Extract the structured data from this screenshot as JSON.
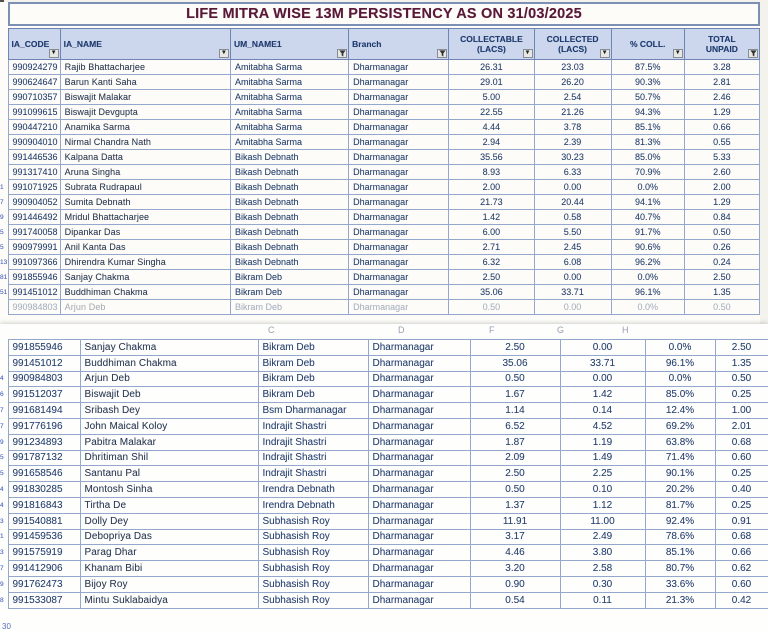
{
  "title": "LIFE MITRA WISE 13M PERSISTENCY AS ON 31/03/2025",
  "colors": {
    "title_text": "#5a1838",
    "header_bg": "#ccd7ed",
    "header_text": "#1e3a6e",
    "grid_border": "#94a8cd",
    "cell_text": "#26406f"
  },
  "columns": [
    {
      "label": "IA_CODE",
      "label2": "",
      "filter": "dropdown",
      "align": "text"
    },
    {
      "label": "IA_NAME",
      "label2": "",
      "filter": "dropdown",
      "align": "text"
    },
    {
      "label": "UM_NAME1",
      "label2": "",
      "filter": "funnel",
      "align": "text"
    },
    {
      "label": "Branch",
      "label2": "",
      "filter": "funnel",
      "align": "text"
    },
    {
      "label": "COLLECTABLE",
      "label2": "(LACS)",
      "filter": "dropdown",
      "align": "num"
    },
    {
      "label": "COLLECTED",
      "label2": "(LACS)",
      "filter": "dropdown",
      "align": "num"
    },
    {
      "label": "% COLL.",
      "label2": "",
      "filter": "dropdown",
      "align": "num"
    },
    {
      "label": "TOTAL",
      "label2": "UNPAID",
      "filter": "funnel",
      "align": "num"
    }
  ],
  "top_table": {
    "gutter": [
      "",
      "",
      "",
      "",
      "",
      "",
      "",
      "",
      "1",
      "7",
      "9",
      "5",
      "5",
      "13",
      "81",
      "51",
      ""
    ],
    "rows": [
      [
        "990924279",
        "Rajib Bhattacharjee",
        "Amitabha Sarma",
        "Dharmanagar",
        "26.31",
        "23.03",
        "87.5%",
        "3.28"
      ],
      [
        "990624647",
        "Barun Kanti Saha",
        "Amitabha Sarma",
        "Dharmanagar",
        "29.01",
        "26.20",
        "90.3%",
        "2.81"
      ],
      [
        "990710357",
        "Biswajit Malakar",
        "Amitabha Sarma",
        "Dharmanagar",
        "5.00",
        "2.54",
        "50.7%",
        "2.46"
      ],
      [
        "991099615",
        "Biswajit Devgupta",
        "Amitabha Sarma",
        "Dharmanagar",
        "22.55",
        "21.26",
        "94.3%",
        "1.29"
      ],
      [
        "990447210",
        "Anamika Sarma",
        "Amitabha Sarma",
        "Dharmanagar",
        "4.44",
        "3.78",
        "85.1%",
        "0.66"
      ],
      [
        "990904010",
        "Nirmal Chandra Nath",
        "Amitabha Sarma",
        "Dharmanagar",
        "2.94",
        "2.39",
        "81.3%",
        "0.55"
      ],
      [
        "991446536",
        "Kalpana Datta",
        "Bikash Debnath",
        "Dharmanagar",
        "35.56",
        "30.23",
        "85.0%",
        "5.33"
      ],
      [
        "991317410",
        "Aruna Singha",
        "Bikash Debnath",
        "Dharmanagar",
        "8.93",
        "6.33",
        "70.9%",
        "2.60"
      ],
      [
        "991071925",
        "Subrata Rudrapaul",
        "Bikash Debnath",
        "Dharmanagar",
        "2.00",
        "0.00",
        "0.0%",
        "2.00"
      ],
      [
        "990904052",
        "Sumita Debnath",
        "Bikash Debnath",
        "Dharmanagar",
        "21.73",
        "20.44",
        "94.1%",
        "1.29"
      ],
      [
        "991446492",
        "Mridul Bhattacharjee",
        "Bikash Debnath",
        "Dharmanagar",
        "1.42",
        "0.58",
        "40.7%",
        "0.84"
      ],
      [
        "991740058",
        "Dipankar Das",
        "Bikash Debnath",
        "Dharmanagar",
        "6.00",
        "5.50",
        "91.7%",
        "0.50"
      ],
      [
        "990979991",
        "Anil Kanta Das",
        "Bikash Debnath",
        "Dharmanagar",
        "2.71",
        "2.45",
        "90.6%",
        "0.26"
      ],
      [
        "991097366",
        "Dhirendra Kumar Singha",
        "Bikash Debnath",
        "Dharmanagar",
        "6.32",
        "6.08",
        "96.2%",
        "0.24"
      ],
      [
        "991855946",
        "Sanjay Chakma",
        "Bikram Deb",
        "Dharmanagar",
        "2.50",
        "0.00",
        "0.0%",
        "2.50"
      ],
      [
        "991451012",
        "Buddhiman Chakma",
        "Bikram Deb",
        "Dharmanagar",
        "35.06",
        "33.71",
        "96.1%",
        "1.35"
      ],
      [
        "990984803",
        "Arjun Deb",
        "Bikram Deb",
        "Dharmanagar",
        "0.50",
        "0.00",
        "0.0%",
        "0.50"
      ]
    ]
  },
  "bottom_table": {
    "column_letters": [
      "C",
      "D",
      "F",
      "G",
      "H"
    ],
    "corner_label": "30",
    "gutter": [
      "",
      "",
      "4",
      "6",
      "7",
      "7",
      "9",
      "5",
      "5",
      "4",
      "4",
      "3",
      "1",
      "3",
      "7",
      "9",
      "8"
    ],
    "rows": [
      [
        "991855946",
        "Sanjay Chakma",
        "Bikram Deb",
        "Dharmanagar",
        "2.50",
        "0.00",
        "0.0%",
        "2.50"
      ],
      [
        "991451012",
        "Buddhiman Chakma",
        "Bikram Deb",
        "Dharmanagar",
        "35.06",
        "33.71",
        "96.1%",
        "1.35"
      ],
      [
        "990984803",
        "Arjun Deb",
        "Bikram Deb",
        "Dharmanagar",
        "0.50",
        "0.00",
        "0.0%",
        "0.50"
      ],
      [
        "991512037",
        "Biswajit Deb",
        "Bikram Deb",
        "Dharmanagar",
        "1.67",
        "1.42",
        "85.0%",
        "0.25"
      ],
      [
        "991681494",
        "Sribash Dey",
        "Bsm Dharmanagar",
        "Dharmanagar",
        "1.14",
        "0.14",
        "12.4%",
        "1.00"
      ],
      [
        "991776196",
        "John Maical Koloy",
        "Indrajit Shastri",
        "Dharmanagar",
        "6.52",
        "4.52",
        "69.2%",
        "2.01"
      ],
      [
        "991234893",
        "Pabitra Malakar",
        "Indrajit Shastri",
        "Dharmanagar",
        "1.87",
        "1.19",
        "63.8%",
        "0.68"
      ],
      [
        "991787132",
        "Dhritiman Shil",
        "Indrajit Shastri",
        "Dharmanagar",
        "2.09",
        "1.49",
        "71.4%",
        "0.60"
      ],
      [
        "991658546",
        "Santanu Pal",
        "Indrajit Shastri",
        "Dharmanagar",
        "2.50",
        "2.25",
        "90.1%",
        "0.25"
      ],
      [
        "991830285",
        "Montosh Sinha",
        "Irendra Debnath",
        "Dharmanagar",
        "0.50",
        "0.10",
        "20.2%",
        "0.40"
      ],
      [
        "991816843",
        "Tirtha De",
        "Irendra Debnath",
        "Dharmanagar",
        "1.37",
        "1.12",
        "81.7%",
        "0.25"
      ],
      [
        "991540881",
        "Dolly Dey",
        "Subhasish Roy",
        "Dharmanagar",
        "11.91",
        "11.00",
        "92.4%",
        "0.91"
      ],
      [
        "991459536",
        "Debopriya Das",
        "Subhasish Roy",
        "Dharmanagar",
        "3.17",
        "2.49",
        "78.6%",
        "0.68"
      ],
      [
        "991575919",
        "Parag Dhar",
        "Subhasish Roy",
        "Dharmanagar",
        "4.46",
        "3.80",
        "85.1%",
        "0.66"
      ],
      [
        "991412906",
        "Khanam Bibi",
        "Subhasish Roy",
        "Dharmanagar",
        "3.20",
        "2.58",
        "80.7%",
        "0.62"
      ],
      [
        "991762473",
        "Bijoy Roy",
        "Subhasish Roy",
        "Dharmanagar",
        "0.90",
        "0.30",
        "33.6%",
        "0.60"
      ],
      [
        "991533087",
        "Mintu Suklabaidya",
        "Subhasish Roy",
        "Dharmanagar",
        "0.54",
        "0.11",
        "21.3%",
        "0.42"
      ]
    ]
  }
}
